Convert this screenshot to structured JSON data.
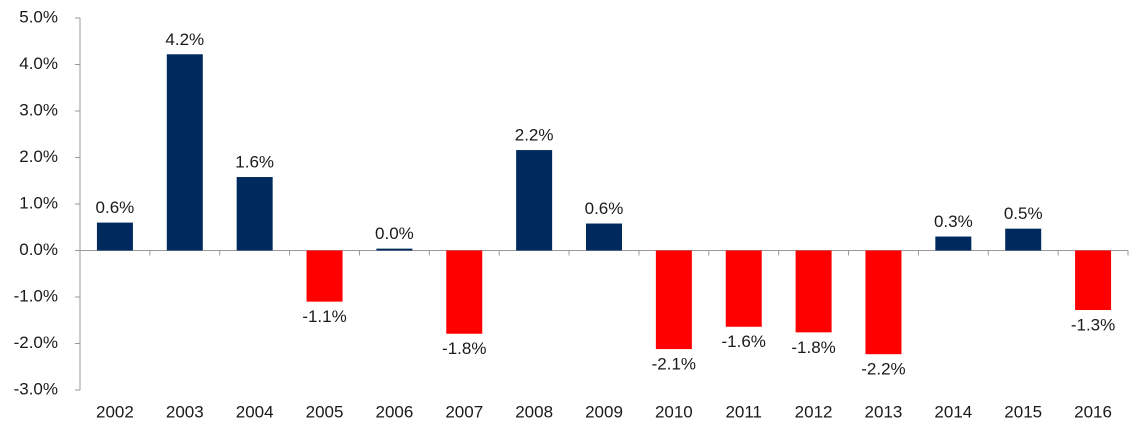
{
  "chart_data": {
    "type": "bar",
    "categories": [
      "2002",
      "2003",
      "2004",
      "2005",
      "2006",
      "2007",
      "2008",
      "2009",
      "2010",
      "2011",
      "2012",
      "2013",
      "2014",
      "2015",
      "2016"
    ],
    "values": [
      0.6,
      4.22,
      1.58,
      -1.1,
      0.04,
      -1.79,
      2.16,
      0.58,
      -2.12,
      -1.64,
      -1.76,
      -2.23,
      0.3,
      0.47,
      -1.28
    ],
    "value_labels": [
      "0.6%",
      "4.2%",
      "1.6%",
      "-1.1%",
      "0.0%",
      "-1.8%",
      "2.2%",
      "0.6%",
      "-2.1%",
      "-1.6%",
      "-1.8%",
      "-2.2%",
      "0.3%",
      "0.5%",
      "-1.3%"
    ],
    "positive_color": "#002a5e",
    "negative_color": "#ff0000",
    "ylim": [
      -3,
      5
    ],
    "yticks": [
      {
        "value": -3,
        "label": "-3.0%"
      },
      {
        "value": -2,
        "label": "-2.0%"
      },
      {
        "value": -1,
        "label": "-1.0%"
      },
      {
        "value": 0,
        "label": "0.0%"
      },
      {
        "value": 1,
        "label": "1.0%"
      },
      {
        "value": 2,
        "label": "2.0%"
      },
      {
        "value": 3,
        "label": "3.0%"
      },
      {
        "value": 4,
        "label": "4.0%"
      },
      {
        "value": 5,
        "label": "5.0%"
      }
    ],
    "grid": false
  }
}
